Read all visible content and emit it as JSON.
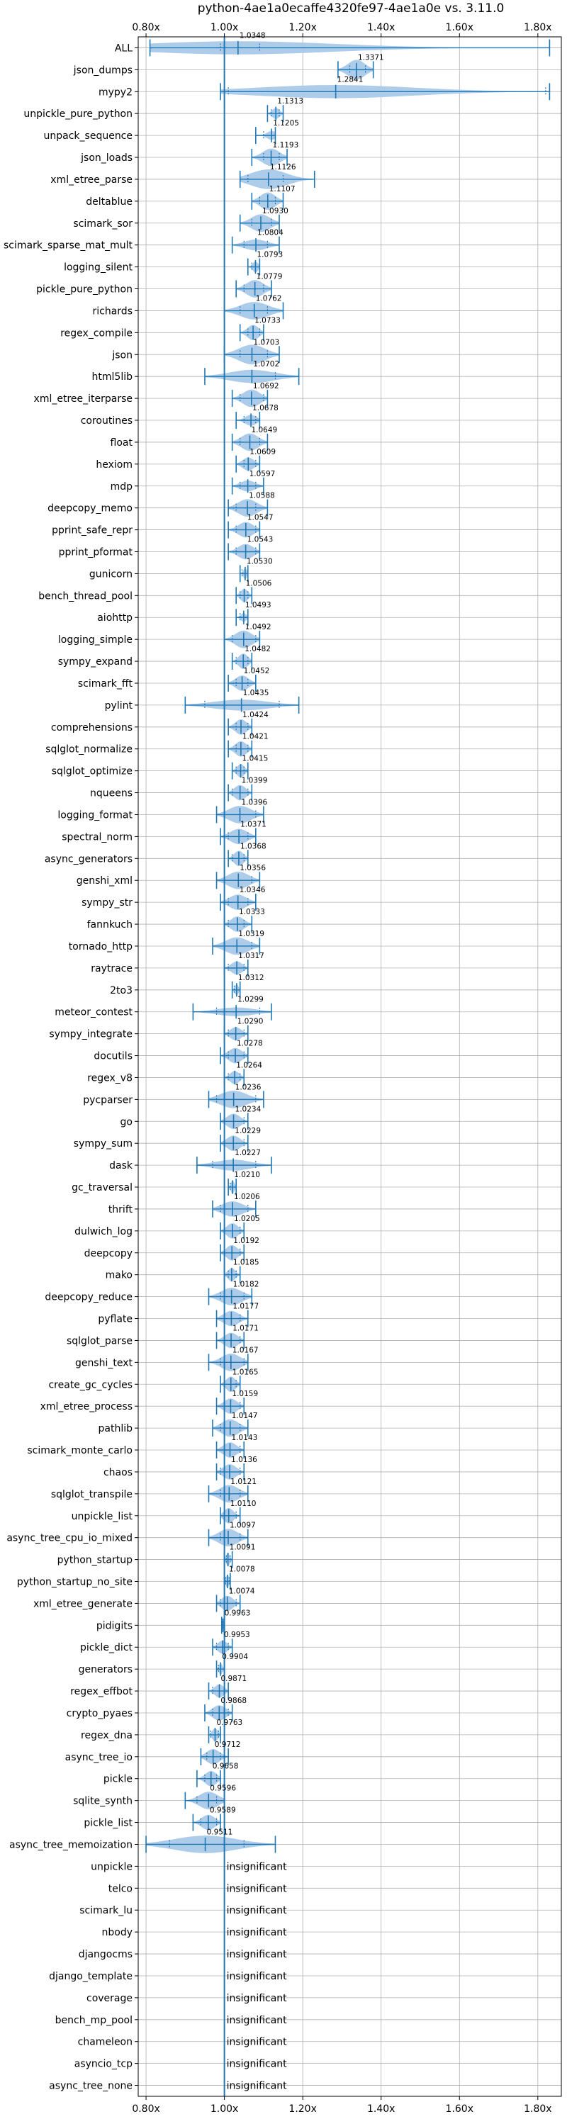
{
  "chart_data": {
    "type": "violin",
    "title": "python-4ae1a0ecaffe4320fe97-4ae1a0e vs. 3.11.0",
    "xlim": [
      0.78,
      1.86
    ],
    "xticks": [
      0.8,
      1.0,
      1.2,
      1.4,
      1.6,
      1.8
    ],
    "xtick_labels": [
      "0.80x",
      "1.00x",
      "1.20x",
      "1.40x",
      "1.60x",
      "1.80x"
    ],
    "reference_line": 1.0,
    "grid": true,
    "color": "#1f77b4",
    "fill_color": "#a9c9e8",
    "insignificant_label": "insignificant",
    "benchmarks": [
      {
        "name": "ALL",
        "value": 1.0348,
        "label": "1.0348",
        "min": 0.81,
        "max": 1.83,
        "q1": 0.99,
        "q3": 1.09,
        "width": 0.6
      },
      {
        "name": "json_dumps",
        "value": 1.3371,
        "label": "1.3371",
        "min": 1.29,
        "max": 1.38,
        "q1": 1.32,
        "q3": 1.36,
        "width": 0.9
      },
      {
        "name": "mypy2",
        "value": 1.2841,
        "label": "1.2841",
        "min": 0.99,
        "max": 1.83,
        "q1": 1.01,
        "q3": 1.82,
        "width": 0.6
      },
      {
        "name": "unpickle_pure_python",
        "value": 1.1313,
        "label": "1.1313",
        "min": 1.11,
        "max": 1.15,
        "q1": 1.12,
        "q3": 1.14,
        "width": 0.5
      },
      {
        "name": "unpack_sequence",
        "value": 1.1205,
        "label": "1.1205",
        "min": 1.08,
        "max": 1.13,
        "q1": 1.1,
        "q3": 1.13,
        "width": 0.4
      },
      {
        "name": "json_loads",
        "value": 1.1193,
        "label": "1.1193",
        "min": 1.07,
        "max": 1.16,
        "q1": 1.1,
        "q3": 1.14,
        "width": 0.8
      },
      {
        "name": "xml_etree_parse",
        "value": 1.1126,
        "label": "1.1126",
        "min": 1.04,
        "max": 1.23,
        "q1": 1.06,
        "q3": 1.15,
        "width": 0.9
      },
      {
        "name": "deltablue",
        "value": 1.1107,
        "label": "1.1107",
        "min": 1.07,
        "max": 1.15,
        "q1": 1.09,
        "q3": 1.13,
        "width": 0.8
      },
      {
        "name": "scimark_sor",
        "value": 1.093,
        "label": "1.0930",
        "min": 1.04,
        "max": 1.14,
        "q1": 1.07,
        "q3": 1.12,
        "width": 0.8
      },
      {
        "name": "scimark_sparse_mat_mult",
        "value": 1.0804,
        "label": "1.0804",
        "min": 1.02,
        "max": 1.14,
        "q1": 1.05,
        "q3": 1.11,
        "width": 0.5
      },
      {
        "name": "logging_silent",
        "value": 1.0793,
        "label": "1.0793",
        "min": 1.06,
        "max": 1.09,
        "q1": 1.07,
        "q3": 1.09,
        "width": 0.5
      },
      {
        "name": "pickle_pure_python",
        "value": 1.0779,
        "label": "1.0779",
        "min": 1.03,
        "max": 1.12,
        "q1": 1.05,
        "q3": 1.1,
        "width": 0.8
      },
      {
        "name": "richards",
        "value": 1.0762,
        "label": "1.0762",
        "min": 1.0,
        "max": 1.15,
        "q1": 1.04,
        "q3": 1.11,
        "width": 0.8
      },
      {
        "name": "regex_compile",
        "value": 1.0733,
        "label": "1.0733",
        "min": 1.04,
        "max": 1.1,
        "q1": 1.06,
        "q3": 1.09,
        "width": 0.7
      },
      {
        "name": "json",
        "value": 1.0703,
        "label": "1.0703",
        "min": 1.0,
        "max": 1.14,
        "q1": 1.04,
        "q3": 1.11,
        "width": 0.9
      },
      {
        "name": "html5lib",
        "value": 1.0702,
        "label": "1.0702",
        "min": 0.95,
        "max": 1.19,
        "q1": 1.0,
        "q3": 1.13,
        "width": 0.6
      },
      {
        "name": "xml_etree_iterparse",
        "value": 1.0692,
        "label": "1.0692",
        "min": 1.02,
        "max": 1.11,
        "q1": 1.04,
        "q3": 1.1,
        "width": 0.8
      },
      {
        "name": "coroutines",
        "value": 1.0678,
        "label": "1.0678",
        "min": 1.03,
        "max": 1.09,
        "q1": 1.05,
        "q3": 1.08,
        "width": 0.5
      },
      {
        "name": "float",
        "value": 1.0649,
        "label": "1.0649",
        "min": 1.02,
        "max": 1.11,
        "q1": 1.04,
        "q3": 1.09,
        "width": 0.8
      },
      {
        "name": "hexiom",
        "value": 1.0609,
        "label": "1.0609",
        "min": 1.03,
        "max": 1.09,
        "q1": 1.05,
        "q3": 1.08,
        "width": 0.6
      },
      {
        "name": "mdp",
        "value": 1.0597,
        "label": "1.0597",
        "min": 1.02,
        "max": 1.1,
        "q1": 1.04,
        "q3": 1.08,
        "width": 0.5
      },
      {
        "name": "deepcopy_memo",
        "value": 1.0588,
        "label": "1.0588",
        "min": 1.01,
        "max": 1.11,
        "q1": 1.03,
        "q3": 1.08,
        "width": 0.8
      },
      {
        "name": "pprint_safe_repr",
        "value": 1.0547,
        "label": "1.0547",
        "min": 1.01,
        "max": 1.09,
        "q1": 1.03,
        "q3": 1.08,
        "width": 0.7
      },
      {
        "name": "pprint_pformat",
        "value": 1.0543,
        "label": "1.0543",
        "min": 1.01,
        "max": 1.09,
        "q1": 1.03,
        "q3": 1.08,
        "width": 0.7
      },
      {
        "name": "gunicorn",
        "value": 1.053,
        "label": "1.0530",
        "min": 1.04,
        "max": 1.06,
        "q1": 1.045,
        "q3": 1.06,
        "width": 0.5
      },
      {
        "name": "bench_thread_pool",
        "value": 1.0506,
        "label": "1.0506",
        "min": 1.03,
        "max": 1.07,
        "q1": 1.04,
        "q3": 1.06,
        "width": 0.6
      },
      {
        "name": "aiohttp",
        "value": 1.0493,
        "label": "1.0493",
        "min": 1.03,
        "max": 1.06,
        "q1": 1.04,
        "q3": 1.06,
        "width": 0.4
      },
      {
        "name": "logging_simple",
        "value": 1.0492,
        "label": "1.0492",
        "min": 1.0,
        "max": 1.09,
        "q1": 1.02,
        "q3": 1.08,
        "width": 0.8
      },
      {
        "name": "sympy_expand",
        "value": 1.0482,
        "label": "1.0482",
        "min": 1.02,
        "max": 1.07,
        "q1": 1.03,
        "q3": 1.06,
        "width": 0.7
      },
      {
        "name": "scimark_fft",
        "value": 1.0452,
        "label": "1.0452",
        "min": 1.01,
        "max": 1.08,
        "q1": 1.03,
        "q3": 1.06,
        "width": 0.7
      },
      {
        "name": "pylint",
        "value": 1.0435,
        "label": "1.0435",
        "min": 0.9,
        "max": 1.19,
        "q1": 0.95,
        "q3": 1.14,
        "width": 0.5
      },
      {
        "name": "comprehensions",
        "value": 1.0424,
        "label": "1.0424",
        "min": 1.01,
        "max": 1.07,
        "q1": 1.03,
        "q3": 1.06,
        "width": 0.7
      },
      {
        "name": "sqlglot_normalize",
        "value": 1.0421,
        "label": "1.0421",
        "min": 1.01,
        "max": 1.07,
        "q1": 1.03,
        "q3": 1.06,
        "width": 0.7
      },
      {
        "name": "sqlglot_optimize",
        "value": 1.0415,
        "label": "1.0415",
        "min": 1.02,
        "max": 1.06,
        "q1": 1.03,
        "q3": 1.05,
        "width": 0.6
      },
      {
        "name": "nqueens",
        "value": 1.0399,
        "label": "1.0399",
        "min": 1.01,
        "max": 1.07,
        "q1": 1.02,
        "q3": 1.06,
        "width": 0.7
      },
      {
        "name": "logging_format",
        "value": 1.0396,
        "label": "1.0396",
        "min": 0.98,
        "max": 1.1,
        "q1": 1.0,
        "q3": 1.08,
        "width": 0.8
      },
      {
        "name": "spectral_norm",
        "value": 1.0371,
        "label": "1.0371",
        "min": 0.99,
        "max": 1.08,
        "q1": 1.01,
        "q3": 1.06,
        "width": 0.7
      },
      {
        "name": "async_generators",
        "value": 1.0368,
        "label": "1.0368",
        "min": 1.01,
        "max": 1.06,
        "q1": 1.02,
        "q3": 1.05,
        "width": 0.7
      },
      {
        "name": "genshi_xml",
        "value": 1.0356,
        "label": "1.0356",
        "min": 0.98,
        "max": 1.09,
        "q1": 1.0,
        "q3": 1.07,
        "width": 0.8
      },
      {
        "name": "sympy_str",
        "value": 1.0346,
        "label": "1.0346",
        "min": 0.99,
        "max": 1.08,
        "q1": 1.01,
        "q3": 1.06,
        "width": 0.7
      },
      {
        "name": "fannkuch",
        "value": 1.0333,
        "label": "1.0333",
        "min": 1.0,
        "max": 1.07,
        "q1": 1.01,
        "q3": 1.05,
        "width": 0.7
      },
      {
        "name": "tornado_http",
        "value": 1.0319,
        "label": "1.0319",
        "min": 0.97,
        "max": 1.09,
        "q1": 1.0,
        "q3": 1.07,
        "width": 0.8
      },
      {
        "name": "raytrace",
        "value": 1.0317,
        "label": "1.0317",
        "min": 1.0,
        "max": 1.06,
        "q1": 1.01,
        "q3": 1.05,
        "width": 0.6
      },
      {
        "name": "2to3",
        "value": 1.0312,
        "label": "1.0312",
        "min": 1.02,
        "max": 1.04,
        "q1": 1.025,
        "q3": 1.04,
        "width": 0.5
      },
      {
        "name": "meteor_contest",
        "value": 1.0299,
        "label": "1.0299",
        "min": 0.92,
        "max": 1.12,
        "q1": 0.98,
        "q3": 1.09,
        "width": 0.4
      },
      {
        "name": "sympy_integrate",
        "value": 1.029,
        "label": "1.0290",
        "min": 1.0,
        "max": 1.06,
        "q1": 1.01,
        "q3": 1.05,
        "width": 0.6
      },
      {
        "name": "docutils",
        "value": 1.0278,
        "label": "1.0278",
        "min": 0.99,
        "max": 1.06,
        "q1": 1.01,
        "q3": 1.05,
        "width": 0.7
      },
      {
        "name": "regex_v8",
        "value": 1.0264,
        "label": "1.0264",
        "min": 1.0,
        "max": 1.05,
        "q1": 1.01,
        "q3": 1.04,
        "width": 0.6
      },
      {
        "name": "pycparser",
        "value": 1.0236,
        "label": "1.0236",
        "min": 0.96,
        "max": 1.1,
        "q1": 0.98,
        "q3": 1.08,
        "width": 0.8
      },
      {
        "name": "go",
        "value": 1.0234,
        "label": "1.0234",
        "min": 0.99,
        "max": 1.06,
        "q1": 1.0,
        "q3": 1.05,
        "width": 0.7
      },
      {
        "name": "sympy_sum",
        "value": 1.0229,
        "label": "1.0229",
        "min": 0.99,
        "max": 1.06,
        "q1": 1.0,
        "q3": 1.05,
        "width": 0.7
      },
      {
        "name": "dask",
        "value": 1.0227,
        "label": "1.0227",
        "min": 0.93,
        "max": 1.12,
        "q1": 0.97,
        "q3": 1.08,
        "width": 0.5
      },
      {
        "name": "gc_traversal",
        "value": 1.021,
        "label": "1.0210",
        "min": 1.01,
        "max": 1.03,
        "q1": 1.015,
        "q3": 1.03,
        "width": 0.6
      },
      {
        "name": "thrift",
        "value": 1.0206,
        "label": "1.0206",
        "min": 0.97,
        "max": 1.08,
        "q1": 0.99,
        "q3": 1.06,
        "width": 0.7
      },
      {
        "name": "dulwich_log",
        "value": 1.0205,
        "label": "1.0205",
        "min": 0.99,
        "max": 1.05,
        "q1": 1.0,
        "q3": 1.04,
        "width": 0.7
      },
      {
        "name": "deepcopy",
        "value": 1.0192,
        "label": "1.0192",
        "min": 0.99,
        "max": 1.05,
        "q1": 1.0,
        "q3": 1.04,
        "width": 0.7
      },
      {
        "name": "mako",
        "value": 1.0185,
        "label": "1.0185",
        "min": 1.0,
        "max": 1.04,
        "q1": 1.01,
        "q3": 1.03,
        "width": 0.6
      },
      {
        "name": "deepcopy_reduce",
        "value": 1.0182,
        "label": "1.0182",
        "min": 0.96,
        "max": 1.07,
        "q1": 0.99,
        "q3": 1.05,
        "width": 0.8
      },
      {
        "name": "pyflate",
        "value": 1.0177,
        "label": "1.0177",
        "min": 0.98,
        "max": 1.06,
        "q1": 1.0,
        "q3": 1.04,
        "width": 0.7
      },
      {
        "name": "sqlglot_parse",
        "value": 1.0171,
        "label": "1.0171",
        "min": 0.98,
        "max": 1.05,
        "q1": 1.0,
        "q3": 1.04,
        "width": 0.7
      },
      {
        "name": "genshi_text",
        "value": 1.0167,
        "label": "1.0167",
        "min": 0.96,
        "max": 1.06,
        "q1": 0.99,
        "q3": 1.05,
        "width": 0.8
      },
      {
        "name": "create_gc_cycles",
        "value": 1.0165,
        "label": "1.0165",
        "min": 0.99,
        "max": 1.04,
        "q1": 1.0,
        "q3": 1.03,
        "width": 0.7
      },
      {
        "name": "xml_etree_process",
        "value": 1.0159,
        "label": "1.0159",
        "min": 0.98,
        "max": 1.05,
        "q1": 1.0,
        "q3": 1.04,
        "width": 0.7
      },
      {
        "name": "pathlib",
        "value": 1.0147,
        "label": "1.0147",
        "min": 0.97,
        "max": 1.06,
        "q1": 0.99,
        "q3": 1.04,
        "width": 0.8
      },
      {
        "name": "scimark_monte_carlo",
        "value": 1.0143,
        "label": "1.0143",
        "min": 0.98,
        "max": 1.05,
        "q1": 1.0,
        "q3": 1.04,
        "width": 0.7
      },
      {
        "name": "chaos",
        "value": 1.0136,
        "label": "1.0136",
        "min": 0.98,
        "max": 1.05,
        "q1": 0.99,
        "q3": 1.04,
        "width": 0.7
      },
      {
        "name": "sqlglot_transpile",
        "value": 1.0121,
        "label": "1.0121",
        "min": 0.96,
        "max": 1.06,
        "q1": 0.99,
        "q3": 1.04,
        "width": 0.8
      },
      {
        "name": "unpickle_list",
        "value": 1.011,
        "label": "1.0110",
        "min": 0.99,
        "max": 1.04,
        "q1": 1.0,
        "q3": 1.03,
        "width": 0.7
      },
      {
        "name": "async_tree_cpu_io_mixed",
        "value": 1.0097,
        "label": "1.0097",
        "min": 0.96,
        "max": 1.06,
        "q1": 0.99,
        "q3": 1.04,
        "width": 0.8
      },
      {
        "name": "python_startup",
        "value": 1.0091,
        "label": "1.0091",
        "min": 1.0,
        "max": 1.02,
        "q1": 1.005,
        "q3": 1.015,
        "width": 0.6
      },
      {
        "name": "python_startup_no_site",
        "value": 1.0078,
        "label": "1.0078",
        "min": 1.0,
        "max": 1.015,
        "q1": 1.003,
        "q3": 1.012,
        "width": 0.6
      },
      {
        "name": "xml_etree_generate",
        "value": 1.0074,
        "label": "1.0074",
        "min": 0.98,
        "max": 1.04,
        "q1": 0.99,
        "q3": 1.03,
        "width": 0.7
      },
      {
        "name": "pidigits",
        "value": 0.9963,
        "label": "0.9963",
        "min": 0.993,
        "max": 1.0,
        "q1": 0.994,
        "q3": 0.999,
        "width": 0.4
      },
      {
        "name": "pickle_dict",
        "value": 0.9953,
        "label": "0.9953",
        "min": 0.97,
        "max": 1.02,
        "q1": 0.98,
        "q3": 1.01,
        "width": 0.6
      },
      {
        "name": "generators",
        "value": 0.9904,
        "label": "0.9904",
        "min": 0.98,
        "max": 1.0,
        "q1": 0.985,
        "q3": 1.0,
        "width": 0.5
      },
      {
        "name": "regex_effbot",
        "value": 0.9871,
        "label": "0.9871",
        "min": 0.96,
        "max": 1.01,
        "q1": 0.97,
        "q3": 1.0,
        "width": 0.6
      },
      {
        "name": "crypto_pyaes",
        "value": 0.9868,
        "label": "0.9868",
        "min": 0.95,
        "max": 1.02,
        "q1": 0.97,
        "q3": 1.01,
        "width": 0.7
      },
      {
        "name": "regex_dna",
        "value": 0.9763,
        "label": "0.9763",
        "min": 0.96,
        "max": 0.99,
        "q1": 0.965,
        "q3": 0.985,
        "width": 0.6
      },
      {
        "name": "async_tree_io",
        "value": 0.9712,
        "label": "0.9712",
        "min": 0.94,
        "max": 1.01,
        "q1": 0.955,
        "q3": 0.99,
        "width": 0.7
      },
      {
        "name": "pickle",
        "value": 0.9658,
        "label": "0.9658",
        "min": 0.93,
        "max": 0.99,
        "q1": 0.95,
        "q3": 0.98,
        "width": 0.7
      },
      {
        "name": "sqlite_synth",
        "value": 0.9596,
        "label": "0.9596",
        "min": 0.9,
        "max": 1.0,
        "q1": 0.93,
        "q3": 0.98,
        "width": 0.8
      },
      {
        "name": "pickle_list",
        "value": 0.9589,
        "label": "0.9589",
        "min": 0.92,
        "max": 0.99,
        "q1": 0.94,
        "q3": 0.98,
        "width": 0.7
      },
      {
        "name": "async_tree_memoization",
        "value": 0.9511,
        "label": "0.9511",
        "min": 0.8,
        "max": 1.13,
        "q1": 0.86,
        "q3": 1.05,
        "width": 0.8
      },
      {
        "name": "unpickle",
        "insignificant": true
      },
      {
        "name": "telco",
        "insignificant": true
      },
      {
        "name": "scimark_lu",
        "insignificant": true
      },
      {
        "name": "nbody",
        "insignificant": true
      },
      {
        "name": "djangocms",
        "insignificant": true
      },
      {
        "name": "django_template",
        "insignificant": true
      },
      {
        "name": "coverage",
        "insignificant": true
      },
      {
        "name": "bench_mp_pool",
        "insignificant": true
      },
      {
        "name": "chameleon",
        "insignificant": true
      },
      {
        "name": "asyncio_tcp",
        "insignificant": true
      },
      {
        "name": "async_tree_none",
        "insignificant": true
      }
    ]
  }
}
